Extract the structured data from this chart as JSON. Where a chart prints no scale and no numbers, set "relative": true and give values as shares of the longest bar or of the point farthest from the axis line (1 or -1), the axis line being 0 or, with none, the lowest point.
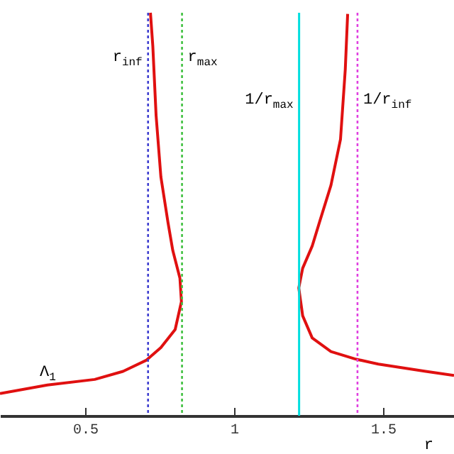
{
  "chart_data": {
    "type": "line",
    "relative": true,
    "xlabel": "r",
    "xlim": [
      0.214,
      1.738
    ],
    "xticks": [
      0.5,
      1,
      1.5
    ],
    "grid": false,
    "marker": "none",
    "line_style": "solid",
    "series": [
      {
        "color": "#e01010",
        "x": [
          0.214,
          0.373,
          0.532,
          0.627,
          0.706,
          0.754,
          0.802,
          0.823,
          0.818,
          0.794,
          0.778,
          0.754,
          0.738,
          0.727,
          0.719
        ],
        "values": [
          0.055,
          0.076,
          0.09,
          0.11,
          0.138,
          0.169,
          0.214,
          0.283,
          0.341,
          0.41,
          0.479,
          0.593,
          0.745,
          0.917,
          1.0
        ]
      },
      {
        "color": "#e01010",
        "x": [
          1.738,
          1.643,
          1.484,
          1.405,
          1.325,
          1.262,
          1.23,
          1.217,
          1.23,
          1.262,
          1.286,
          1.325,
          1.357,
          1.373,
          1.381
        ],
        "values": [
          0.1,
          0.11,
          0.128,
          0.141,
          0.159,
          0.193,
          0.248,
          0.317,
          0.366,
          0.421,
          0.479,
          0.572,
          0.686,
          0.859,
          0.997
        ]
      }
    ],
    "ref_lines": [
      {
        "axis": "x",
        "value": 0.711,
        "label": "r$_{inf}$",
        "color": "#4040d0",
        "line_style": "dotted"
      },
      {
        "axis": "x",
        "value": 0.825,
        "label": "r$_{max}$",
        "color": "#40c040",
        "line_style": "dotted"
      },
      {
        "axis": "x",
        "value": 1.218,
        "label": "1/r$_{max}$",
        "color": "#00dede",
        "line_style": "solid"
      },
      {
        "axis": "x",
        "value": 1.414,
        "label": "1/r$_{inf}$",
        "color": "#e040e0",
        "line_style": "dotted"
      }
    ],
    "annotations": [
      "Λ$_{1}$"
    ]
  }
}
